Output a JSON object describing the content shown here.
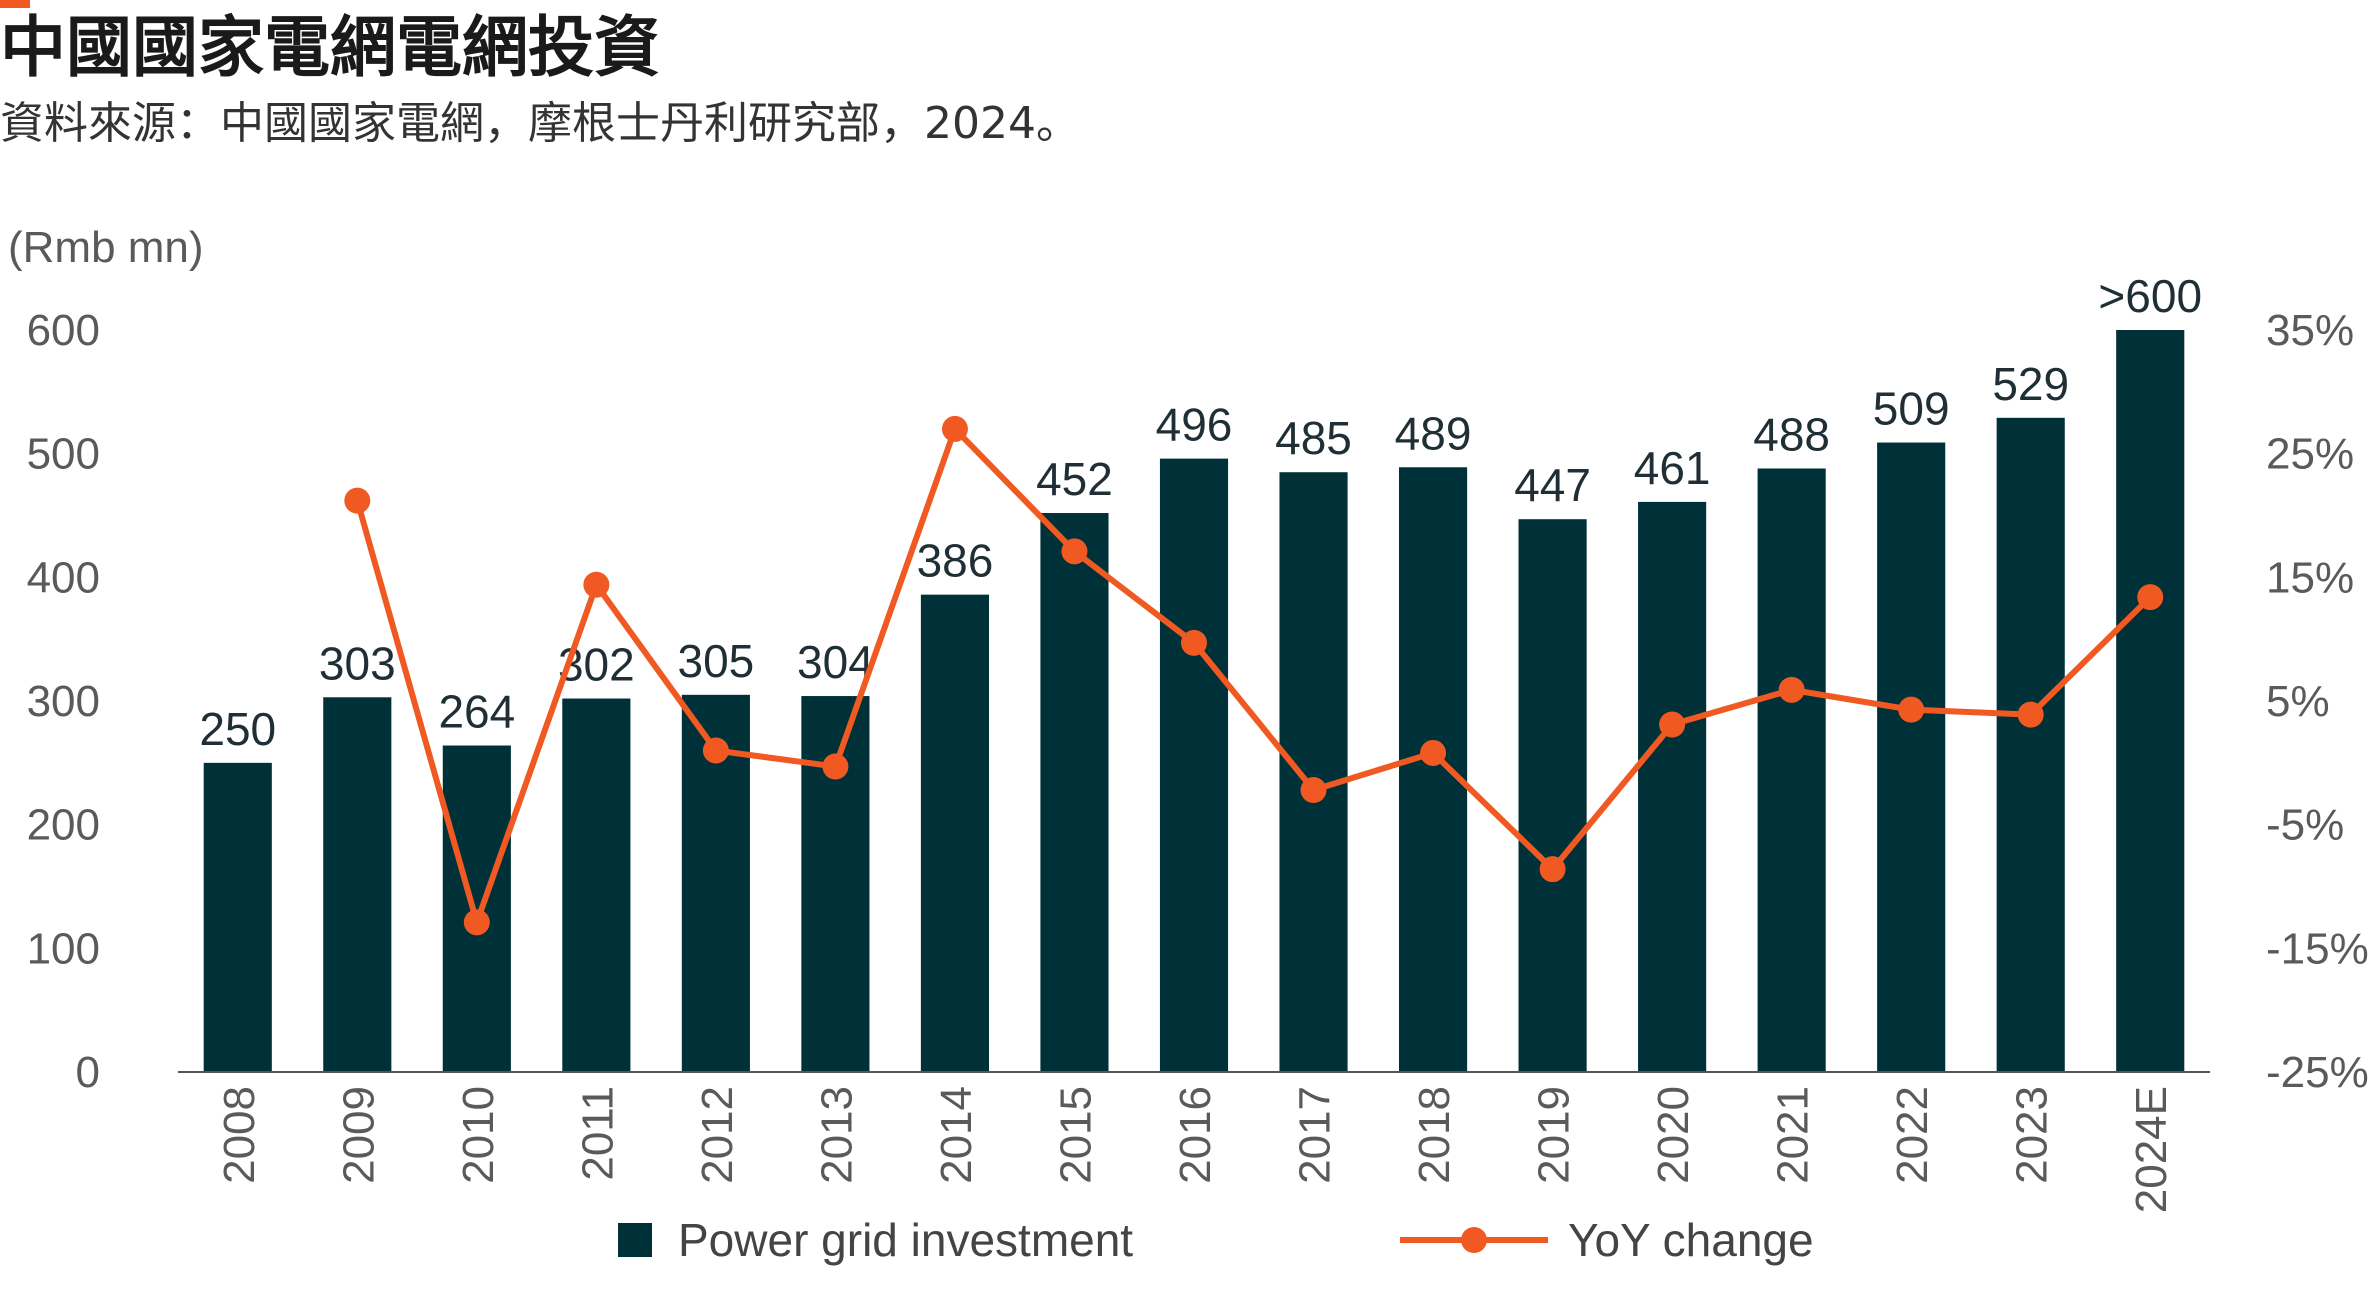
{
  "header": {
    "title": "中國國家電網電網投資",
    "subtitle": "資料來源：中國國家電網，摩根士丹利研究部，2024。"
  },
  "colors": {
    "accent": "#f05a22",
    "bar": "#003038",
    "line": "#f05a22"
  },
  "chart_data": {
    "type": "bar",
    "categories": [
      "2008",
      "2009",
      "2010",
      "2011",
      "2012",
      "2013",
      "2014",
      "2015",
      "2016",
      "2017",
      "2018",
      "2019",
      "2020",
      "2021",
      "2022",
      "2023",
      "2024E"
    ],
    "series": [
      {
        "name": "Power grid investment",
        "type": "bar",
        "axis": "left",
        "values": [
          250,
          303,
          264,
          302,
          305,
          304,
          386,
          452,
          496,
          485,
          489,
          447,
          461,
          488,
          509,
          529,
          600
        ],
        "labels": [
          "250",
          "303",
          "264",
          "302",
          "305",
          "304",
          "386",
          "452",
          "496",
          "485",
          "489",
          "447",
          "461",
          "488",
          "509",
          "529",
          ">600"
        ]
      },
      {
        "name": "YoY change",
        "type": "line",
        "axis": "right",
        "values": [
          null,
          21.2,
          -12.9,
          14.4,
          1.0,
          -0.3,
          27.0,
          17.1,
          9.7,
          -2.2,
          0.8,
          -8.6,
          3.1,
          5.9,
          4.3,
          3.9,
          13.4
        ]
      }
    ],
    "ylabel": "(Rmb mn)",
    "ylim": [
      0,
      600
    ],
    "yticks": [
      0,
      100,
      200,
      300,
      400,
      500,
      600
    ],
    "y2lim": [
      -25,
      35
    ],
    "y2ticks": [
      "35%",
      "25%",
      "15%",
      "5%",
      "-5%",
      "-15%",
      "-25%"
    ],
    "grid": false,
    "legend_position": "bottom"
  }
}
